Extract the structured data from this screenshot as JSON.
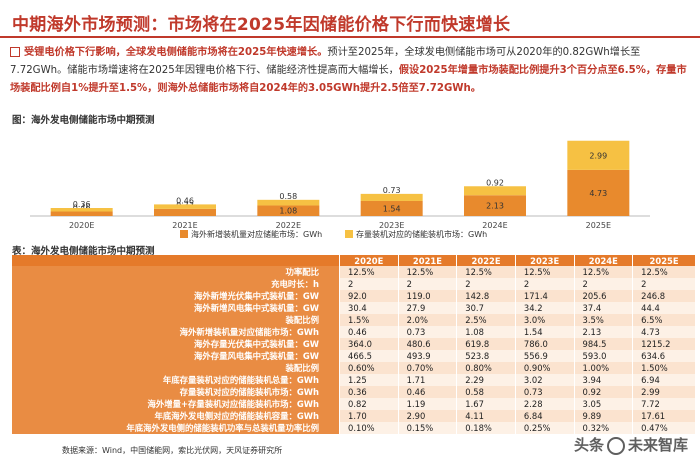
{
  "title": "中期海外市场预测：市场将在2025年因储能价格下行而快速增长",
  "bullet": {
    "p1_hl": "受锂电价格下行影响，全球发电侧储能市场将在2025年快速增长。",
    "p2": "预计至2025年，全球发电侧储能市场可从2020年的0.82GWh增长至7.72GWh。储能市场增速将在2025年因锂电价格下行、储能经济性提高而大幅增长，",
    "p3_hl": "假设2025年增量市场装配比例提升3个百分点至6.5%，存量市场装配比例自1%提升至1.5%，则海外总储能市场将自2024年的3.05GWh提升2.5倍至7.72GWh。"
  },
  "chart_caption": "图：海外发电侧储能市场中期预测",
  "chart_data": {
    "type": "bar",
    "stacked": true,
    "categories": [
      "2020E",
      "2021E",
      "2022E",
      "2023E",
      "2024E",
      "2025E"
    ],
    "series": [
      {
        "name": "海外新增装机量对应储能市场：GWh",
        "values": [
          0.46,
          0.73,
          1.08,
          1.54,
          2.13,
          4.73
        ],
        "color": "#e88a2d"
      },
      {
        "name": "存量装机对应的储能装机市场：GWh",
        "values": [
          0.36,
          0.46,
          0.58,
          0.73,
          0.92,
          2.99
        ],
        "color": "#f6c143"
      }
    ],
    "ylim": [
      0,
      8
    ],
    "grid": false,
    "legend": "bottom"
  },
  "table_caption": "表：海外发电侧储能市场中期预测",
  "table": {
    "columns": [
      "2020E",
      "2021E",
      "2022E",
      "2023E",
      "2024E",
      "2025E"
    ],
    "rows": [
      {
        "label": "功率配比",
        "values": [
          "12.5%",
          "12.5%",
          "12.5%",
          "12.5%",
          "12.5%",
          "12.5%"
        ]
      },
      {
        "label": "充电时长：h",
        "values": [
          "2",
          "2",
          "2",
          "2",
          "2",
          "2"
        ]
      },
      {
        "label": "海外新增光伏集中式装机量：GW",
        "values": [
          "92.0",
          "119.0",
          "142.8",
          "171.4",
          "205.6",
          "246.8"
        ]
      },
      {
        "label": "海外新增风电集中式装机量：GW",
        "values": [
          "30.4",
          "27.9",
          "30.7",
          "34.2",
          "37.4",
          "44.4"
        ]
      },
      {
        "label": "装配比例",
        "values": [
          "1.5%",
          "2.0%",
          "2.5%",
          "3.0%",
          "3.5%",
          "6.5%"
        ]
      },
      {
        "label": "海外新增装机量对应储能市场：GWh",
        "values": [
          "0.46",
          "0.73",
          "1.08",
          "1.54",
          "2.13",
          "4.73"
        ]
      },
      {
        "label": "海外存量光伏集中式装机量：GW",
        "values": [
          "364.0",
          "480.6",
          "619.8",
          "786.0",
          "984.5",
          "1215.2"
        ]
      },
      {
        "label": "海外存量风电集中式装机量：GW",
        "values": [
          "466.5",
          "493.9",
          "523.8",
          "556.9",
          "593.0",
          "634.6"
        ]
      },
      {
        "label": "装配比例",
        "values": [
          "0.60%",
          "0.70%",
          "0.80%",
          "0.90%",
          "1.00%",
          "1.50%"
        ]
      },
      {
        "label": "年底存量装机对应的储能装机总量：GWh",
        "values": [
          "1.25",
          "1.71",
          "2.29",
          "3.02",
          "3.94",
          "6.94"
        ]
      },
      {
        "label": "存量装机对应的储能装机市场：GWh",
        "values": [
          "0.36",
          "0.46",
          "0.58",
          "0.73",
          "0.92",
          "2.99"
        ]
      },
      {
        "label": "海外增量+存量装机对应储能装机市场：GWh",
        "values": [
          "0.82",
          "1.19",
          "1.67",
          "2.28",
          "3.05",
          "7.72"
        ]
      },
      {
        "label": "年底海外发电侧对应的储能装机容量：GWh",
        "values": [
          "1.70",
          "2.90",
          "4.11",
          "6.84",
          "9.89",
          "17.61"
        ]
      },
      {
        "label": "年底海外发电侧的储能装机功率与总装机量功率比例",
        "values": [
          "0.10%",
          "0.15%",
          "0.18%",
          "0.25%",
          "0.32%",
          "0.47%"
        ]
      }
    ]
  },
  "source": "数据来源：Wind，中国储能网，索比光伏网，天风证券研究所",
  "watermark": {
    "prefix": "头条",
    "name": "未来智库"
  }
}
